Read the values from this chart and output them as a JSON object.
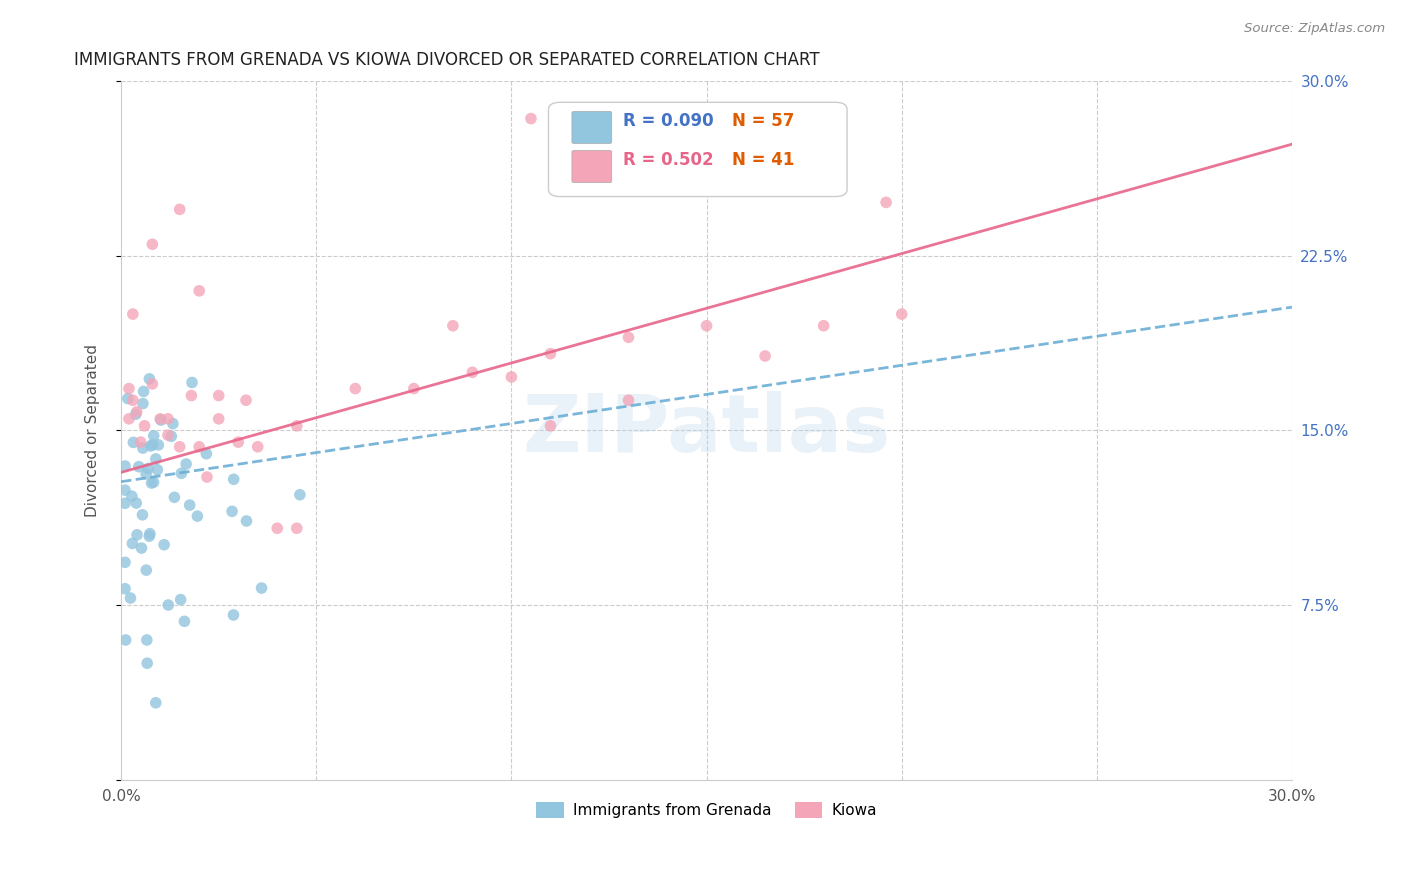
{
  "title": "IMMIGRANTS FROM GRENADA VS KIOWA DIVORCED OR SEPARATED CORRELATION CHART",
  "source": "Source: ZipAtlas.com",
  "ylabel": "Divorced or Separated",
  "x_min": 0.0,
  "x_max": 0.3,
  "y_min": 0.0,
  "y_max": 0.3,
  "color_grenada": "#92c5de",
  "color_kiowa": "#f4a5b8",
  "color_grenada_line": "#6baed6",
  "color_kiowa_line": "#e8658a",
  "watermark": "ZIPatlas",
  "legend_r1": "R = 0.090",
  "legend_n1": "N = 57",
  "legend_r2": "R = 0.502",
  "legend_n2": "N = 41",
  "grenada_slope": 0.25,
  "grenada_intercept": 0.128,
  "kiowa_slope": 0.47,
  "kiowa_intercept": 0.132
}
